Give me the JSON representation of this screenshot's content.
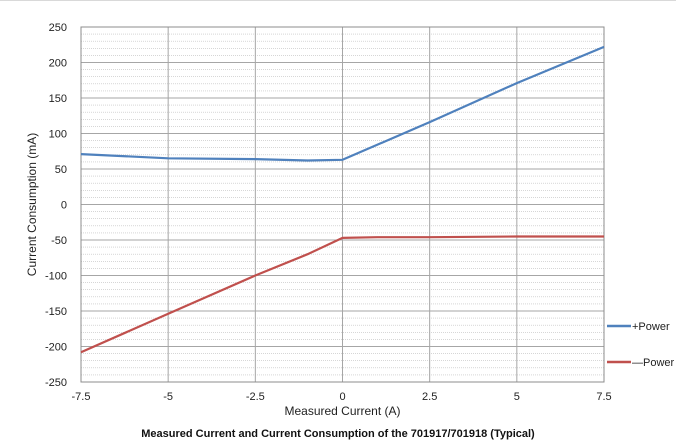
{
  "chart_data": {
    "type": "line",
    "caption": "Measured Current and Current Consumption of the 701917/701918 (Typical)",
    "xlabel": "Measured Current (A)",
    "ylabel": "Current Consumption (mA)",
    "xlim": [
      -7.5,
      7.5
    ],
    "ylim": [
      -250,
      250
    ],
    "x_ticks": [
      -7.5,
      -5,
      -2.5,
      0,
      2.5,
      5,
      7.5
    ],
    "x_tick_labels": [
      "-7.5",
      "-5",
      "-2.5",
      "0",
      "2.5",
      "5",
      "7.5"
    ],
    "y_ticks": [
      250,
      200,
      150,
      100,
      50,
      0,
      -50,
      -100,
      -150,
      -200,
      -250
    ],
    "y_tick_labels": [
      "250",
      "200",
      "150",
      "100",
      "50",
      "0",
      "-50",
      "-100",
      "-150",
      "-200",
      "-250"
    ],
    "grid": true,
    "minor_grid": true,
    "legend_position": "right",
    "series": [
      {
        "name": "+Power",
        "color": "#4f81bd",
        "points": [
          [
            -7.5,
            71
          ],
          [
            -5,
            65
          ],
          [
            -2.5,
            64
          ],
          [
            -1,
            62
          ],
          [
            0,
            63
          ],
          [
            2.5,
            116
          ],
          [
            5,
            171
          ],
          [
            7.5,
            222
          ]
        ]
      },
      {
        "name": "—Power",
        "color": "#c0504d",
        "points": [
          [
            -7.5,
            -208
          ],
          [
            -5,
            -154
          ],
          [
            -2.5,
            -100
          ],
          [
            -1,
            -70
          ],
          [
            0,
            -47
          ],
          [
            1,
            -46
          ],
          [
            2.5,
            -46
          ],
          [
            5,
            -45
          ],
          [
            7.5,
            -45
          ]
        ]
      }
    ]
  }
}
